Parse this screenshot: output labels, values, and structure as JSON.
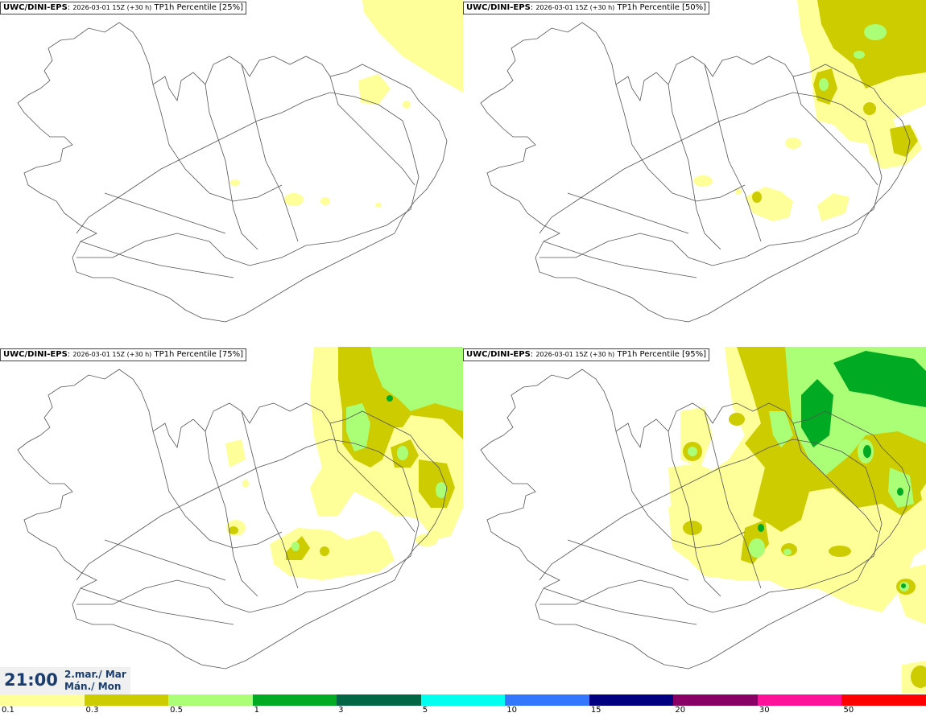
{
  "panels": [
    {
      "model": "UWC/DINI-EPS",
      "run": "2026-03-01 15Z (+30 h)",
      "product": "TP1h Percentile [25%]"
    },
    {
      "model": "UWC/DINI-EPS",
      "run": "2026-03-01 15Z (+30 h)",
      "product": "TP1h Percentile [50%]"
    },
    {
      "model": "UWC/DINI-EPS",
      "run": "2026-03-01 15Z (+30 h)",
      "product": "TP1h Percentile [75%]"
    },
    {
      "model": "UWC/DINI-EPS",
      "run": "2026-03-01 15Z (+30 h)",
      "product": "TP1h Percentile [95%]"
    }
  ],
  "valid_time": {
    "time": "21:00",
    "date_line1": "2.mar./ Mar",
    "date_line2": "Mán./ Mon"
  },
  "legend": {
    "colors": [
      "#ffff99",
      "#cccc00",
      "#aaff77",
      "#00aa22",
      "#006644",
      "#00ffee",
      "#3377ff",
      "#000080",
      "#880066",
      "#ff1199",
      "#ff0000"
    ],
    "ticks": [
      "0.1",
      "0.3",
      "0.5",
      "1",
      "3",
      "5",
      "10",
      "15",
      "20",
      "30",
      "50"
    ]
  }
}
